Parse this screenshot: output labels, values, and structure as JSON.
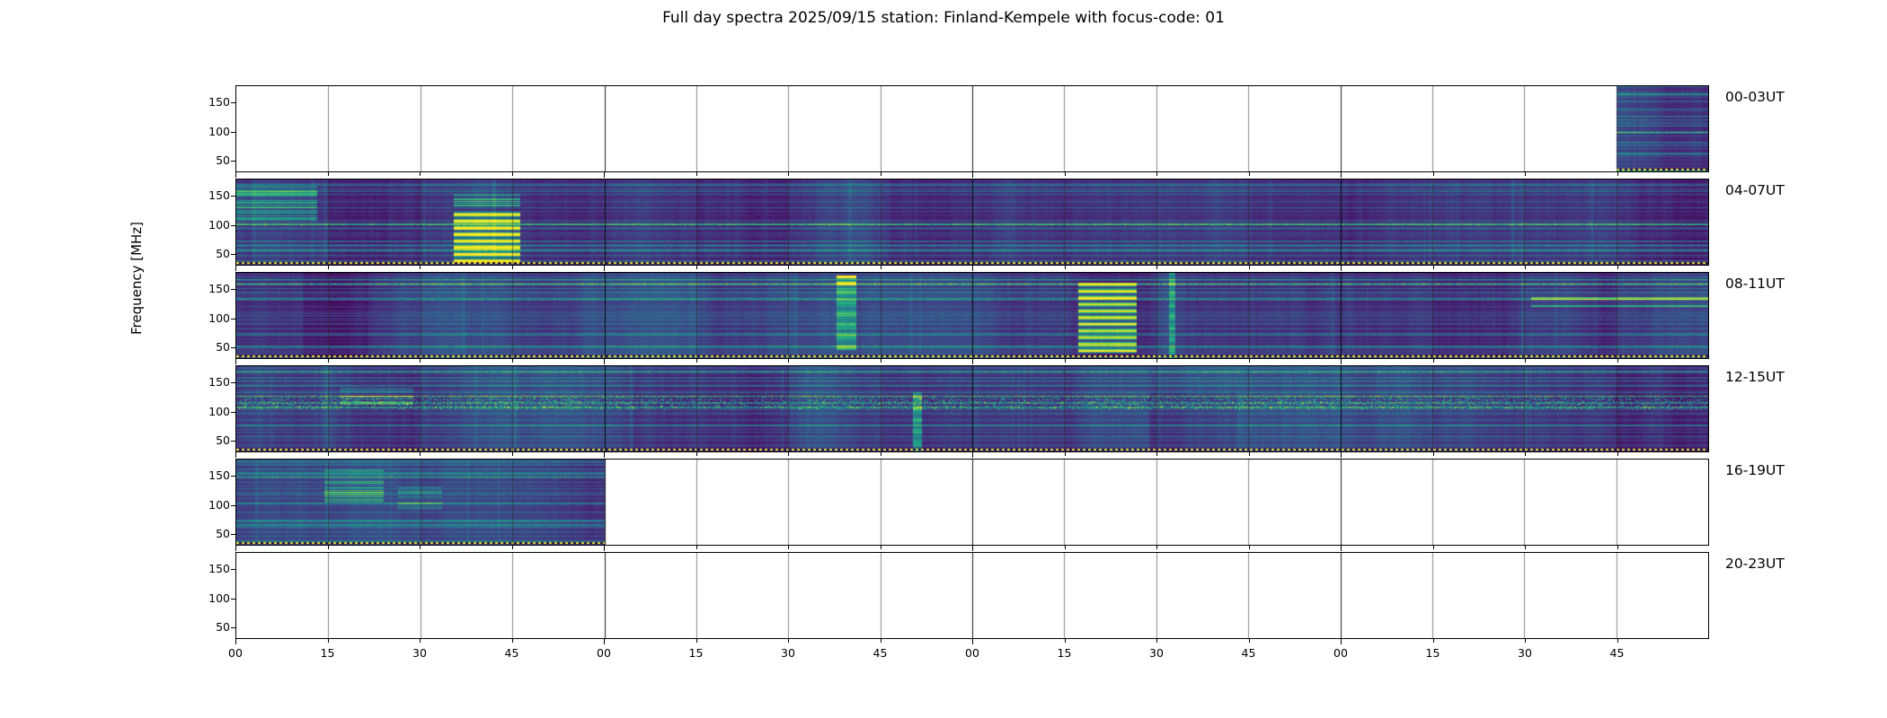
{
  "chart_data": {
    "type": "heatmap",
    "title": "Full day spectra 2025/09/15 station: Finland-Kempele with focus-code: 01",
    "date": "2025/09/15",
    "station": "Finland-Kempele",
    "focus_code": "01",
    "ylabel": "Frequency [MHz]",
    "colormap": "viridis",
    "y_tick_labels": [
      "150",
      "100",
      "50"
    ],
    "x_tick_labels": [
      "00",
      "15",
      "30",
      "45",
      "00",
      "15",
      "30",
      "45",
      "00",
      "15",
      "30",
      "45",
      "00",
      "15",
      "30",
      "45"
    ],
    "segments_per_panel": 16,
    "minutes_per_segment": 15,
    "hours_per_panel": 4,
    "colors": {
      "background": "#ffffff",
      "axis": "#000000",
      "dotted_line": "#ebe53c",
      "base_low": "#440154"
    },
    "panels": [
      {
        "label": "00-03UT",
        "coverage": [
          [
            0.9375,
            1.0
          ]
        ],
        "features": []
      },
      {
        "label": "04-07UT",
        "coverage": [
          [
            0.0,
            1.0
          ]
        ],
        "features": [
          {
            "kind": "streaks",
            "x": 0.0,
            "y": 0.05,
            "w": 0.055,
            "h": 0.45,
            "v": 0.38
          },
          {
            "kind": "streaks",
            "x": 0.148,
            "y": 0.16,
            "w": 0.045,
            "h": 0.16,
            "v": 0.45
          },
          {
            "kind": "burst",
            "x": 0.148,
            "y": 0.38,
            "w": 0.045,
            "h": 0.6,
            "v": 0.95
          },
          {
            "kind": "dim",
            "x": 0.9375,
            "y": 0.0,
            "w": 0.0625,
            "h": 1.0,
            "v": -0.05
          }
        ]
      },
      {
        "label": "08-11UT",
        "coverage": [
          [
            0.0,
            1.0
          ]
        ],
        "features": [
          {
            "kind": "dim",
            "x": 0.045,
            "y": 0.0,
            "w": 0.045,
            "h": 1.0,
            "v": -0.05
          },
          {
            "kind": "burst",
            "x": 0.408,
            "y": 0.03,
            "w": 0.013,
            "h": 0.12,
            "v": 0.92
          },
          {
            "kind": "column",
            "x": 0.408,
            "y": 0.15,
            "w": 0.013,
            "h": 0.75,
            "v": 0.42
          },
          {
            "kind": "burst",
            "x": 0.572,
            "y": 0.12,
            "w": 0.04,
            "h": 0.82,
            "v": 0.88
          },
          {
            "kind": "column",
            "x": 0.634,
            "y": 0.0,
            "w": 0.004,
            "h": 1.0,
            "v": 0.4
          },
          {
            "kind": "streaks",
            "x": 0.88,
            "y": 0.28,
            "w": 0.12,
            "h": 0.12,
            "v": 0.42
          }
        ]
      },
      {
        "label": "12-15UT",
        "coverage": [
          [
            0.0,
            1.0
          ]
        ],
        "features": [
          {
            "kind": "speckles",
            "x": 0.0,
            "y": 0.36,
            "w": 1.0,
            "h": 0.14,
            "v": 0.5
          },
          {
            "kind": "streaks",
            "x": 0.07,
            "y": 0.25,
            "w": 0.05,
            "h": 0.2,
            "v": 0.3
          },
          {
            "kind": "column",
            "x": 0.46,
            "y": 0.3,
            "w": 0.006,
            "h": 0.7,
            "v": 0.42
          },
          {
            "kind": "dim",
            "x": 0.62,
            "y": 0.3,
            "w": 0.06,
            "h": 0.7,
            "v": -0.06
          },
          {
            "kind": "dim",
            "x": 0.9375,
            "y": 0.0,
            "w": 0.0625,
            "h": 1.0,
            "v": -0.05
          }
        ]
      },
      {
        "label": "16-19UT",
        "coverage": [
          [
            0.0,
            0.25
          ]
        ],
        "features": [
          {
            "kind": "streaks",
            "x": 0.06,
            "y": 0.12,
            "w": 0.04,
            "h": 0.38,
            "v": 0.45
          },
          {
            "kind": "streaks",
            "x": 0.11,
            "y": 0.3,
            "w": 0.03,
            "h": 0.3,
            "v": 0.3
          }
        ]
      },
      {
        "label": "20-23UT",
        "coverage": [],
        "features": []
      }
    ]
  }
}
